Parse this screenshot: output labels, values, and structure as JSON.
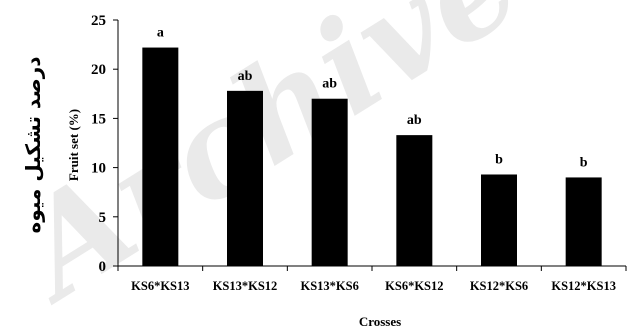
{
  "chart_data": {
    "type": "bar",
    "categories": [
      "KS6*KS13",
      "KS13*KS12",
      "KS13*KS6",
      "KS6*KS12",
      "KS12*KS6",
      "KS12*KS13"
    ],
    "values": [
      22.2,
      17.8,
      17.0,
      13.3,
      9.3,
      9.0
    ],
    "significance": [
      "a",
      "ab",
      "ab",
      "ab",
      "b",
      "b"
    ],
    "ylabel": "Fruit set (%)",
    "ylabel_fa": "درصد تشکیل میوه",
    "xlabel": "Crosses",
    "ylim": [
      0,
      25
    ],
    "yticks": [
      0,
      5,
      10,
      15,
      20,
      25
    ],
    "bar_color": "#000000",
    "grid": false,
    "watermark": "Archive of"
  }
}
